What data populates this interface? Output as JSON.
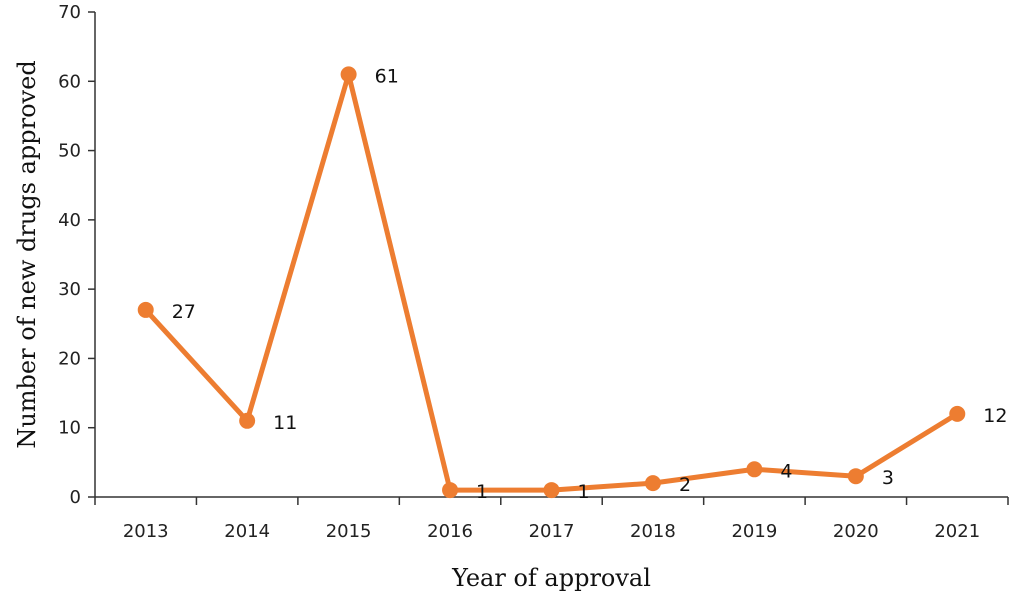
{
  "chart_data": {
    "type": "line",
    "title": "",
    "xlabel": "Year of approval",
    "ylabel": "Number of new drugs approved",
    "categories": [
      "2013",
      "2014",
      "2015",
      "2016",
      "2017",
      "2018",
      "2019",
      "2020",
      "2021"
    ],
    "series": [
      {
        "values": [
          27,
          11,
          61,
          1,
          1,
          2,
          4,
          3,
          12
        ],
        "color": "#ED7D31"
      }
    ],
    "data_labels": [
      "27",
      "11",
      "61",
      "1",
      "1",
      "2",
      "4",
      "3",
      "12"
    ],
    "ylim": [
      0,
      70
    ],
    "yticks": [
      0,
      10,
      20,
      30,
      40,
      50,
      60,
      70
    ],
    "grid": false,
    "legend": "none"
  }
}
